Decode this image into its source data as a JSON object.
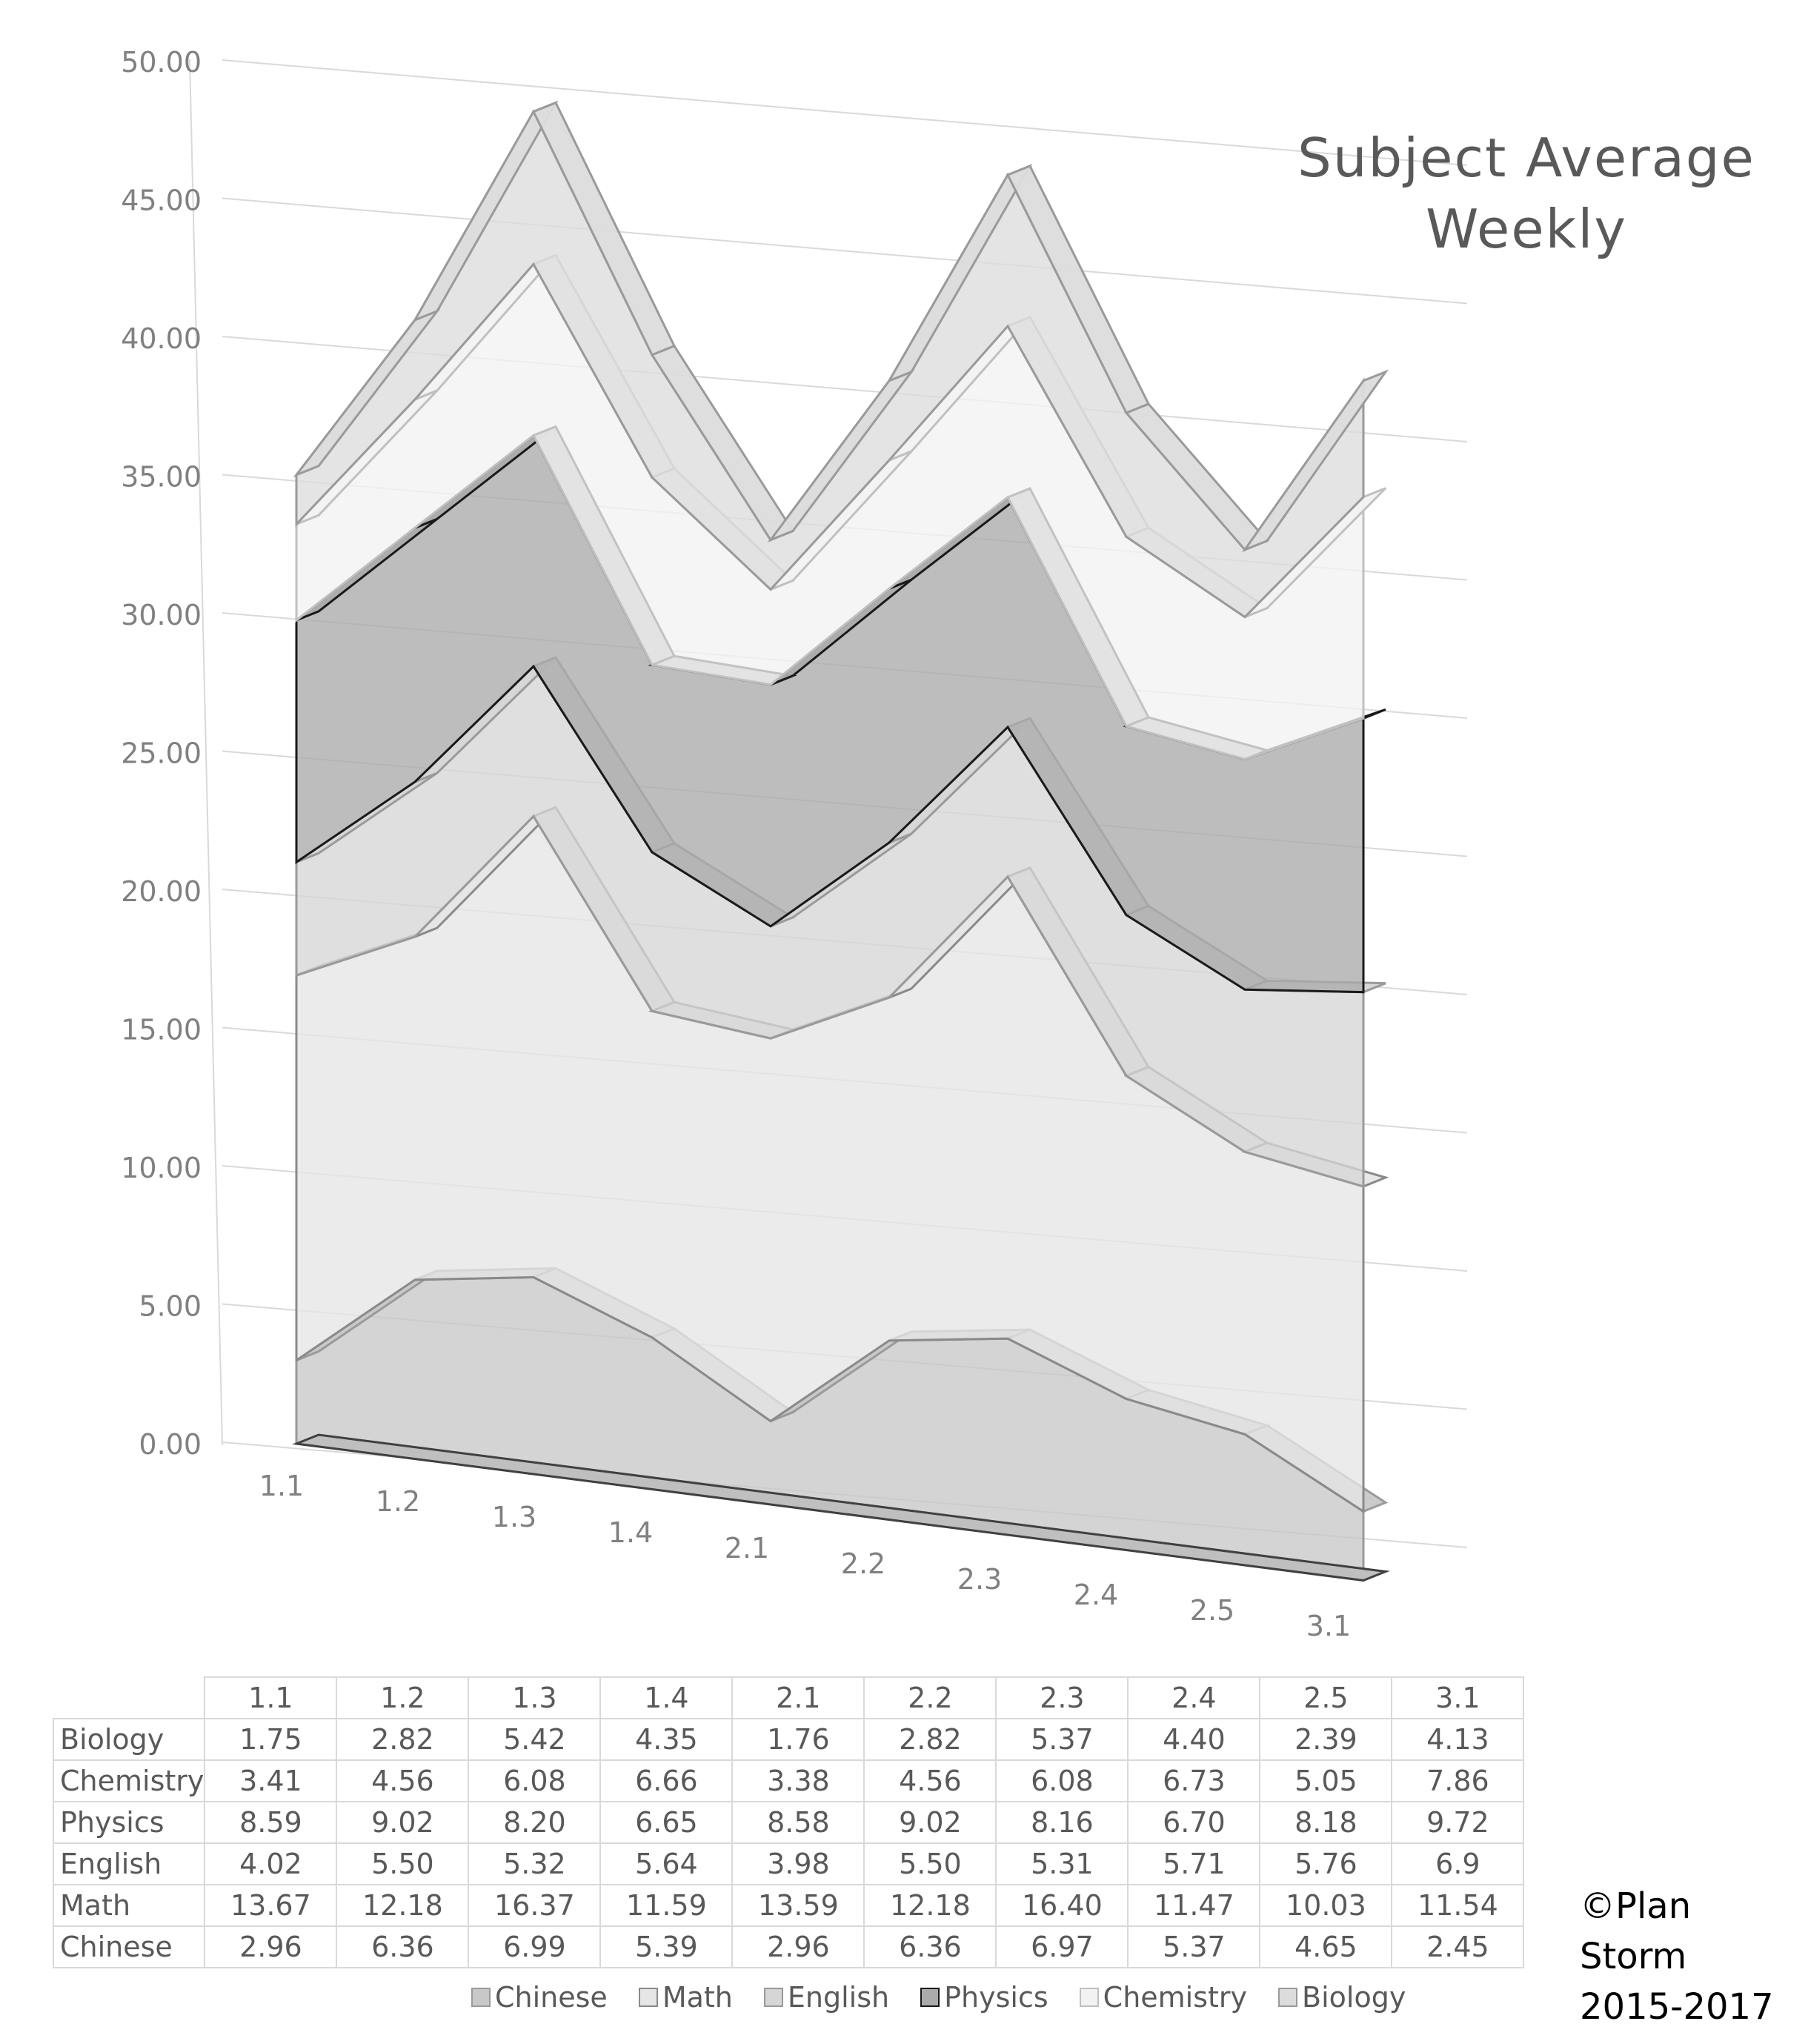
{
  "chart_data": {
    "type": "area",
    "title": "Subject Average Weekly",
    "categories": [
      "1.1",
      "1.2",
      "1.3",
      "1.4",
      "2.1",
      "2.2",
      "2.3",
      "2.4",
      "2.5",
      "3.1"
    ],
    "y_ticks": [
      "0.00",
      "5.00",
      "10.00",
      "15.00",
      "20.00",
      "25.00",
      "30.00",
      "35.00",
      "40.00",
      "45.00",
      "50.00"
    ],
    "ylim": [
      0,
      50
    ],
    "stacked": true,
    "projection": "3d",
    "series": [
      {
        "name": "Chinese",
        "values": [
          2.96,
          6.36,
          6.99,
          5.39,
          2.96,
          6.36,
          6.97,
          5.37,
          4.65,
          2.45
        ],
        "color": "#c8c8c8",
        "stroke": "#9a9a9a"
      },
      {
        "name": "Math",
        "values": [
          13.67,
          12.18,
          16.37,
          11.59,
          13.59,
          12.18,
          16.4,
          11.47,
          10.03,
          11.54
        ],
        "color": "#e6e6e6",
        "stroke": "#8a8a8a"
      },
      {
        "name": "English",
        "values": [
          4.02,
          5.5,
          5.32,
          5.64,
          3.98,
          5.5,
          5.31,
          5.71,
          5.76,
          6.9
        ],
        "color": "#d6d6d6",
        "stroke": "#9a9a9a"
      },
      {
        "name": "Physics",
        "values": [
          8.59,
          9.02,
          8.2,
          6.65,
          8.58,
          9.02,
          8.16,
          6.7,
          8.18,
          9.72
        ],
        "color": "#ababab",
        "stroke": "#1a1a1a"
      },
      {
        "name": "Chemistry",
        "values": [
          3.41,
          4.56,
          6.08,
          6.66,
          3.38,
          4.56,
          6.08,
          6.73,
          5.05,
          7.86
        ],
        "color": "#f2f2f2",
        "stroke": "#c0c0c0"
      },
      {
        "name": "Biology",
        "values": [
          1.75,
          2.82,
          5.42,
          4.35,
          1.76,
          2.82,
          5.37,
          4.4,
          2.39,
          4.13
        ],
        "color": "#dcdcdc",
        "stroke": "#9a9a9a"
      }
    ],
    "table_rows": [
      {
        "label": "Biology",
        "values": [
          "1.75",
          "2.82",
          "5.42",
          "4.35",
          "1.76",
          "2.82",
          "5.37",
          "4.40",
          "2.39",
          "4.13"
        ]
      },
      {
        "label": "Chemistry",
        "values": [
          "3.41",
          "4.56",
          "6.08",
          "6.66",
          "3.38",
          "4.56",
          "6.08",
          "6.73",
          "5.05",
          "7.86"
        ]
      },
      {
        "label": "Physics",
        "values": [
          "8.59",
          "9.02",
          "8.20",
          "6.65",
          "8.58",
          "9.02",
          "8.16",
          "6.70",
          "8.18",
          "9.72"
        ]
      },
      {
        "label": "English",
        "values": [
          "4.02",
          "5.50",
          "5.32",
          "5.64",
          "3.98",
          "5.50",
          "5.31",
          "5.71",
          "5.76",
          "6.9"
        ]
      },
      {
        "label": "Math",
        "values": [
          "13.67",
          "12.18",
          "16.37",
          "11.59",
          "13.59",
          "12.18",
          "16.40",
          "11.47",
          "10.03",
          "11.54"
        ]
      },
      {
        "label": "Chinese",
        "values": [
          "2.96",
          "6.36",
          "6.99",
          "5.39",
          "2.96",
          "6.36",
          "6.97",
          "5.37",
          "4.65",
          "2.45"
        ]
      }
    ],
    "legend": [
      "Chinese",
      "Math",
      "English",
      "Physics",
      "Chemistry",
      "Biology"
    ],
    "legend_position": "bottom",
    "grid": true
  },
  "title_line1": "Subject Average",
  "title_line2": "Weekly",
  "copyright_line1": "©Plan Storm",
  "copyright_line2": "2015-2017"
}
